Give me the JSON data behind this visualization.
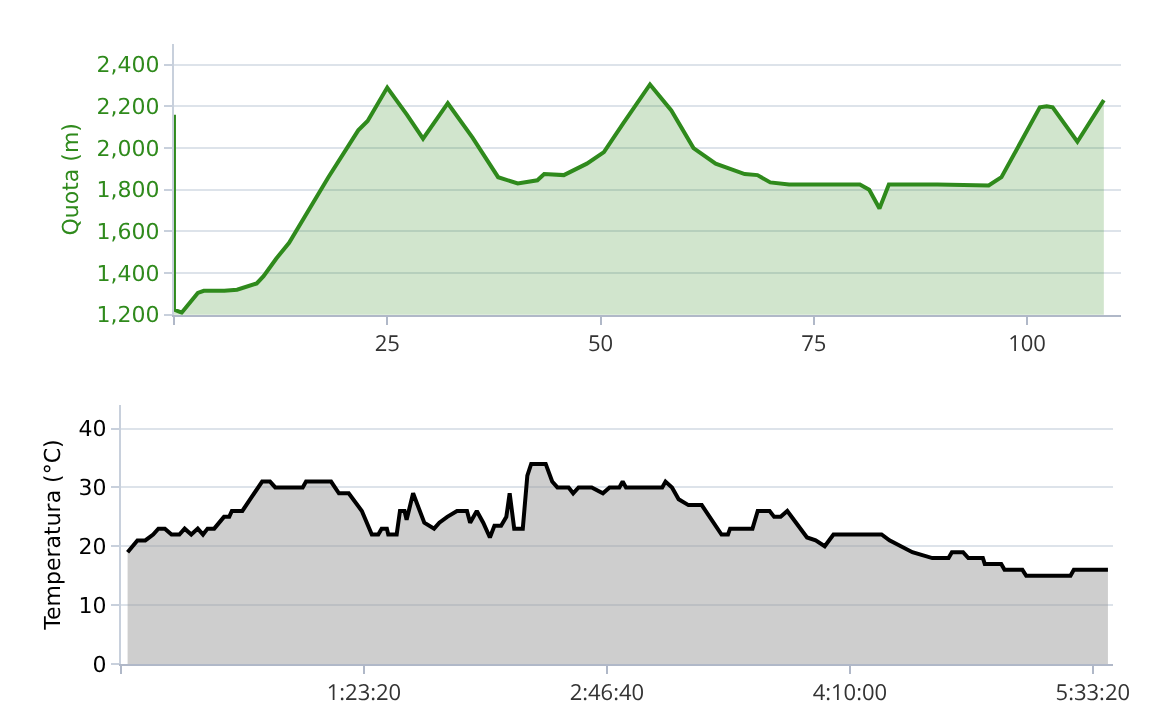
{
  "chart_data": [
    {
      "type": "area",
      "ylabel": "Quota (m)",
      "xlim": [
        0,
        111
      ],
      "xticks": [
        {
          "value": 0,
          "label": null
        },
        25,
        50,
        75,
        100
      ],
      "ylim": [
        1200,
        2500
      ],
      "yticks": [
        {
          "value": 1200,
          "label": "1,200"
        },
        {
          "value": 1400,
          "label": "1,400"
        },
        {
          "value": 1600,
          "label": "1,600"
        },
        {
          "value": 1800,
          "label": "1,800"
        },
        {
          "value": 2000,
          "label": "2,000"
        },
        {
          "value": 2200,
          "label": "2,200"
        },
        {
          "value": 2400,
          "label": "2,400"
        }
      ],
      "grid": "y",
      "series": [
        {
          "color": "#2f8a1c",
          "x": [
            0,
            0,
            0.9,
            2.8,
            3.5,
            5.9,
            7.4,
            9.7,
            10.5,
            12,
            13.5,
            18.1,
            21.6,
            22.7,
            25,
            27.3,
            29.2,
            32.1,
            35,
            38,
            40.3,
            42.6,
            43.4,
            45.7,
            48.4,
            50.4,
            52.6,
            55.8,
            58.3,
            60.9,
            63.5,
            66.9,
            68.4,
            69.9,
            72.1,
            80.4,
            81.5,
            82.7,
            83.8,
            89.5,
            95.5,
            97,
            101.5,
            102.3,
            103,
            105.9,
            109
          ],
          "values": [
            2160,
            1225,
            1210,
            1305,
            1315,
            1315,
            1320,
            1350,
            1385,
            1470,
            1545,
            1860,
            2085,
            2130,
            2290,
            2160,
            2045,
            2215,
            2050,
            1860,
            1830,
            1845,
            1875,
            1870,
            1925,
            1980,
            2115,
            2305,
            2180,
            2000,
            1925,
            1875,
            1870,
            1835,
            1825,
            1825,
            1800,
            1710,
            1825,
            1825,
            1820,
            1860,
            2195,
            2200,
            2195,
            2030,
            2230
          ]
        }
      ]
    },
    {
      "type": "area",
      "ylabel": "Temperatura (°C)",
      "xlim": [
        0,
        5.67
      ],
      "xticks": [
        {
          "value": 0,
          "label": null
        },
        {
          "value": 1.3889,
          "label": "1:23:20"
        },
        {
          "value": 2.7778,
          "label": "2:46:40"
        },
        {
          "value": 4.1667,
          "label": "4:10:00"
        },
        {
          "value": 5.5556,
          "label": "5:33:20"
        }
      ],
      "ylim": [
        0,
        44
      ],
      "yticks": [
        0,
        10,
        20,
        30,
        40
      ],
      "grid": "y",
      "series": [
        {
          "color": "#000000",
          "x": [
            0.038,
            0.094,
            0.139,
            0.184,
            0.214,
            0.251,
            0.289,
            0.334,
            0.364,
            0.402,
            0.439,
            0.469,
            0.495,
            0.533,
            0.589,
            0.619,
            0.634,
            0.694,
            0.739,
            0.807,
            0.852,
            0.882,
            1.039,
            1.058,
            1.201,
            1.246,
            1.302,
            1.377,
            1.434,
            1.471,
            1.49,
            1.52,
            1.528,
            1.576,
            1.595,
            1.621,
            1.633,
            1.67,
            1.734,
            1.79,
            1.82,
            1.865,
            1.921,
            1.978,
            1.996,
            2.034,
            2.071,
            2.109,
            2.135,
            2.173,
            2.203,
            2.222,
            2.248,
            2.297,
            2.323,
            2.345,
            2.428,
            2.465,
            2.495,
            2.559,
            2.585,
            2.616,
            2.691,
            2.755,
            2.793,
            2.849,
            2.868,
            2.887,
            3.094,
            3.113,
            3.15,
            3.188,
            3.244,
            3.32,
            3.433,
            3.47,
            3.482,
            3.61,
            3.64,
            3.708,
            3.734,
            3.771,
            3.809,
            3.922,
            3.971,
            4.023,
            4.073,
            4.348,
            4.393,
            4.524,
            4.638,
            4.731,
            4.75,
            4.814,
            4.844,
            4.927,
            4.938,
            5.032,
            5.051,
            5.153,
            5.175,
            5.428,
            5.447,
            5.642
          ],
          "values": [
            19,
            21,
            21,
            22,
            23,
            23,
            22,
            22,
            23,
            22,
            23,
            22,
            23,
            23,
            25,
            25,
            26,
            26,
            28,
            31,
            31,
            30,
            30,
            31,
            31,
            29,
            29,
            26,
            22,
            22,
            23,
            23,
            22,
            22,
            26,
            26,
            24.5,
            29,
            24,
            23,
            24,
            25,
            26,
            26,
            24,
            26,
            24,
            21.5,
            23.5,
            23.5,
            25,
            29,
            23,
            23,
            32,
            34,
            34,
            31,
            30,
            30,
            29,
            30,
            30,
            29,
            30,
            30,
            31,
            30,
            30,
            31,
            30,
            28,
            27,
            27,
            22,
            22,
            23,
            23,
            26,
            26,
            25,
            25,
            26,
            21.5,
            21,
            20,
            22,
            22,
            21,
            19,
            18,
            18,
            19,
            19,
            18,
            18,
            17,
            17,
            16,
            16,
            15,
            15,
            16,
            16
          ]
        }
      ]
    }
  ]
}
